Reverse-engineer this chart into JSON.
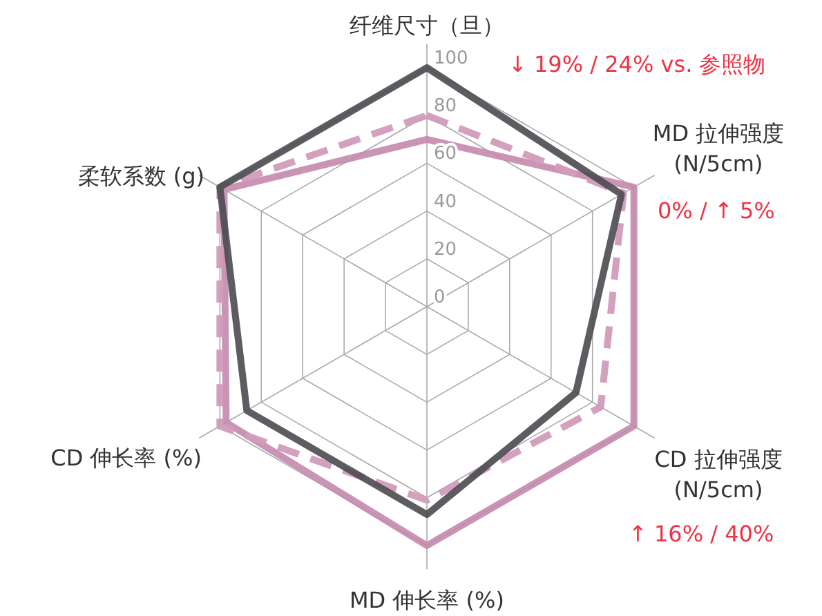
{
  "chart_data": {
    "type": "radar",
    "categories": [
      "纤维尺寸（旦）",
      "MD 拉伸强度\n(N/5cm)",
      "CD 拉伸强度\n(N/5cm)",
      "MD 伸长率 (%)",
      "CD 伸长率 (%)",
      "柔软系数 (g)"
    ],
    "series": [
      {
        "color": "#c48aad",
        "line_style": "solid",
        "values": [
          70,
          100,
          100,
          100,
          97,
          98
        ]
      },
      {
        "color": "#d19bbb",
        "line_style": "dashed",
        "values": [
          80,
          95,
          84,
          81,
          100,
          100
        ]
      },
      {
        "color": "#4a4a50",
        "line_style": "solid",
        "values": [
          100,
          94,
          72,
          87,
          87,
          100
        ]
      }
    ],
    "ylim": [
      0,
      100
    ],
    "yticks": [
      0,
      20,
      40,
      60,
      80,
      100
    ],
    "marker": "none",
    "grid": true,
    "annotations": [
      "↓  19% / 24%  vs. 参照物",
      "0% /  ↑  5%",
      "↑  16% / 40%"
    ]
  }
}
